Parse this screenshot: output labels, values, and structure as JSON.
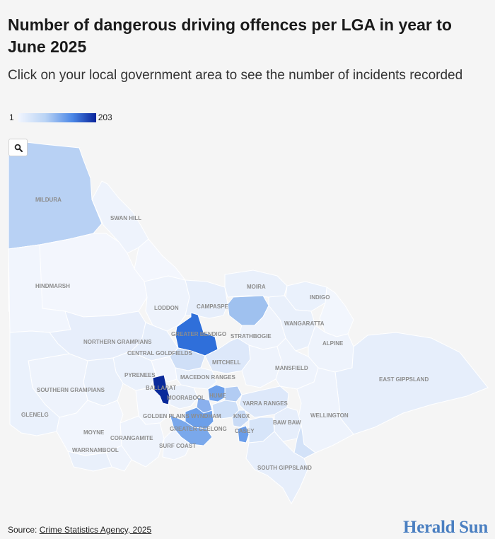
{
  "header": {
    "title": "Number of dangerous driving offences per LGA in year to June 2025",
    "subtitle": "Click on your local government area to see the number of incidents recorded"
  },
  "legend": {
    "min": "1",
    "max": "203",
    "color_low": "#f1f5fe",
    "color_high": "#08239a"
  },
  "zoom": {
    "icon": "search-icon"
  },
  "map": {
    "labels": [
      "MILDURA",
      "SWAN HILL",
      "HINDMARSH",
      "LODDON",
      "MOIRA",
      "CAMPASPE",
      "INDIGO",
      "WANGARATTA",
      "GREATER BENDIGO",
      "STRATHBOGIE",
      "NORTHERN GRAMPIANS",
      "ALPINE",
      "CENTRAL GOLDFIELDS",
      "MITCHELL",
      "MANSFIELD",
      "MACEDON RANGES",
      "PYRENEES",
      "EAST GIPPSLAND",
      "SOUTHERN GRAMPIANS",
      "BALLARAT",
      "HUME",
      "MOORABOOL",
      "YARRA RANGES",
      "GLENELG",
      "GOLDEN PLAINS",
      "WYNDHAM",
      "KNOX",
      "WELLINGTON",
      "GREATER GEELONG",
      "CASEY",
      "BAW BAW",
      "MOYNE",
      "CORANGAMITE",
      "SURF COAST",
      "WARRNAMBOOL",
      "SOUTH GIPPSLAND"
    ]
  },
  "footer": {
    "source_prefix": "Source: ",
    "source_link": "Crime Statistics Agency, 2025",
    "brand": "Herald Sun"
  }
}
